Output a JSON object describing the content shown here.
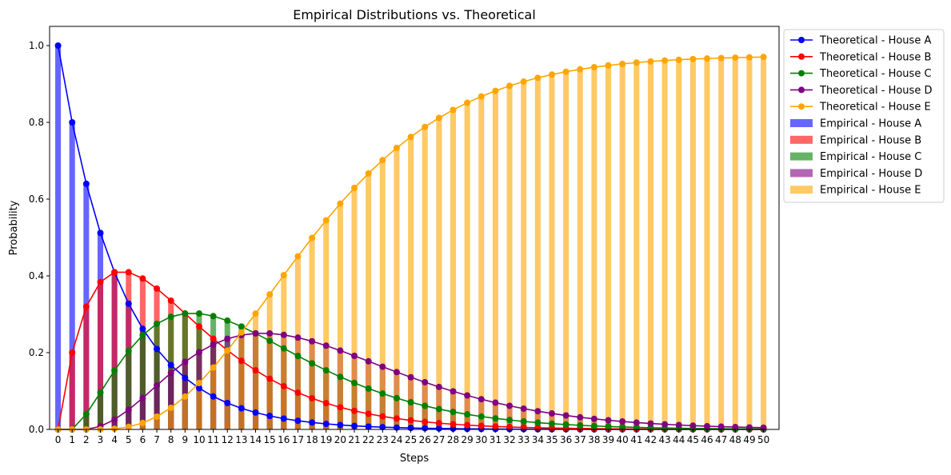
{
  "chart_data": {
    "type": "bar+line",
    "title": "Empirical Distributions vs. Theoretical",
    "xlabel": "Steps",
    "ylabel": "Probability",
    "xlim": [
      -0.6,
      51.1
    ],
    "ylim": [
      0,
      1.05
    ],
    "yticks": [
      "0.0",
      "0.2",
      "0.4",
      "0.6",
      "0.8",
      "1.0"
    ],
    "ytick_values": [
      0,
      0.2,
      0.4,
      0.6,
      0.8,
      1.0
    ],
    "x": [
      0,
      1,
      2,
      3,
      4,
      5,
      6,
      7,
      8,
      9,
      10,
      11,
      12,
      13,
      14,
      15,
      16,
      17,
      18,
      19,
      20,
      21,
      22,
      23,
      24,
      25,
      26,
      27,
      28,
      29,
      30,
      31,
      32,
      33,
      34,
      35,
      36,
      37,
      38,
      39,
      40,
      41,
      42,
      43,
      44,
      45,
      46,
      47,
      48,
      49,
      50
    ],
    "xtick_labels": [
      "0",
      "1",
      "2",
      "3",
      "4",
      "5",
      "6",
      "7",
      "8",
      "9",
      "10",
      "11",
      "12",
      "13",
      "14",
      "15",
      "16",
      "17",
      "18",
      "19",
      "20",
      "21",
      "22",
      "23",
      "24",
      "25",
      "26",
      "27",
      "28",
      "29",
      "30",
      "31",
      "32",
      "33",
      "34",
      "35",
      "36",
      "37",
      "38",
      "39",
      "40",
      "41",
      "42",
      "43",
      "44",
      "45",
      "46",
      "47",
      "48",
      "49",
      "50"
    ],
    "bar_width": 0.4,
    "bar_alpha": 0.6,
    "legend_position": "outside upper right",
    "grid": false,
    "colors": {
      "A": "#0000ff",
      "B": "#ff0000",
      "C": "#008000",
      "D": "#800080",
      "E": "#ffa500"
    },
    "series": [
      {
        "key": "A",
        "line_name": "Theoretical - House A",
        "bar_name": "Empirical - House A",
        "color": "#0000ff",
        "values": [
          1,
          0.8,
          0.64,
          0.512,
          0.4096,
          0.32768,
          0.262144,
          0.209715,
          0.167772,
          0.134218,
          0.107374,
          0.085899,
          0.068719,
          0.054976,
          0.04398,
          0.035184,
          0.028147,
          0.022518,
          0.018014,
          0.014412,
          0.011529,
          0.009223,
          0.007379,
          0.005903,
          0.004722,
          0.003778,
          0.003022,
          0.002418,
          0.001934,
          0.001547,
          0.001238,
          0.00099,
          0.000792,
          0.000634,
          0.000507,
          0.000406,
          0.000325,
          0.00026,
          0.000208,
          0.000166,
          0.000133,
          0.000106,
          8.5e-05,
          6.8e-05,
          5.4e-05,
          4.4e-05,
          3.5e-05,
          2.8e-05,
          2.2e-05,
          1.8e-05,
          1.4e-05
        ]
      },
      {
        "key": "B",
        "line_name": "Theoretical - House B",
        "bar_name": "Empirical - House B",
        "color": "#ff0000",
        "values": [
          0,
          0.2,
          0.32,
          0.384,
          0.4096,
          0.4096,
          0.393216,
          0.367002,
          0.33554,
          0.30199,
          0.268435,
          0.236223,
          0.206158,
          0.178671,
          0.153932,
          0.131941,
          0.11259,
          0.095701,
          0.081066,
          0.068455,
          0.057646,
          0.048421,
          0.040585,
          0.033949,
          0.02834,
          0.02361,
          0.019642,
          0.016315,
          0.013537,
          0.011215,
          0.009281,
          0.00767,
          0.006334,
          0.005222,
          0.004304,
          0.003542,
          0.002914,
          0.002394,
          0.001966,
          0.001612,
          0.001321,
          0.001082,
          0.000885,
          0.000723,
          0.000591,
          0.000482,
          0.000393,
          0.000321,
          0.000261,
          0.000213,
          0.000173
        ]
      },
      {
        "key": "C",
        "line_name": "Theoretical - House C",
        "bar_name": "Empirical - House C",
        "color": "#008000",
        "values": [
          0,
          0,
          0.04,
          0.096,
          0.1536,
          0.2048,
          0.24576,
          0.275251,
          0.293598,
          0.30199,
          0.30199,
          0.295279,
          0.283467,
          0.268007,
          0.250139,
          0.230897,
          0.211106,
          0.191403,
          0.172265,
          0.154024,
          0.136908,
          0.121053,
          0.106536,
          0.093373,
          0.081529,
          0.070829,
          0.061378,
          0.053023,
          0.045687,
          0.039254,
          0.033634,
          0.028741,
          0.024496,
          0.020826,
          0.017668,
          0.01496,
          0.012643,
          0.010666,
          0.008982,
          0.007551,
          0.006337,
          0.005309,
          0.004441,
          0.00371,
          0.003095,
          0.002578,
          0.002144,
          0.001781,
          0.001478,
          0.001225,
          0.001014
        ]
      },
      {
        "key": "D",
        "line_name": "Theoretical - House D",
        "bar_name": "Empirical - House D",
        "color": "#800080",
        "values": [
          0,
          0,
          0,
          0.008,
          0.0256,
          0.0512,
          0.08192,
          0.114688,
          0.146801,
          0.176161,
          0.201327,
          0.221459,
          0.236223,
          0.245682,
          0.250139,
          0.250139,
          0.24629,
          0.239254,
          0.229687,
          0.218239,
          0.205364,
          0.191649,
          0.17756,
          0.1634,
          0.149446,
          0.135931,
          0.122989,
          0.110735,
          0.09924,
          0.088559,
          0.078717,
          0.069711,
          0.061531,
          0.054145,
          0.047516,
          0.041596,
          0.036332,
          0.031668,
          0.027549,
          0.023918,
          0.020728,
          0.017929,
          0.01548,
          0.013339,
          0.01147,
          0.009847,
          0.008439,
          0.007221,
          0.00617,
          0.005262,
          0.00448
        ]
      },
      {
        "key": "E",
        "line_name": "Theoretical - House E",
        "bar_name": "Empirical - House E",
        "color": "#ffa500",
        "values": [
          0,
          0,
          0,
          0,
          0.0016,
          0.00672,
          0.01696,
          0.033344,
          0.056288,
          0.085632,
          0.120874,
          0.16114,
          0.205433,
          0.252664,
          0.301809,
          0.351839,
          0.401867,
          0.451124,
          0.498969,
          0.54487,
          0.588393,
          0.629154,
          0.666941,
          0.701678,
          0.733384,
          0.762151,
          0.788151,
          0.81151,
          0.832349,
          0.850957,
          0.867479,
          0.88209,
          0.894948,
          0.906202,
          0.916004,
          0.924517,
          0.931887,
          0.938239,
          0.943697,
          0.948372,
          0.952363,
          0.95576,
          0.958642,
          0.96108,
          0.96314,
          0.964878,
          0.966342,
          0.967574,
          0.96861,
          0.969479,
          0.970209
        ]
      }
    ]
  }
}
